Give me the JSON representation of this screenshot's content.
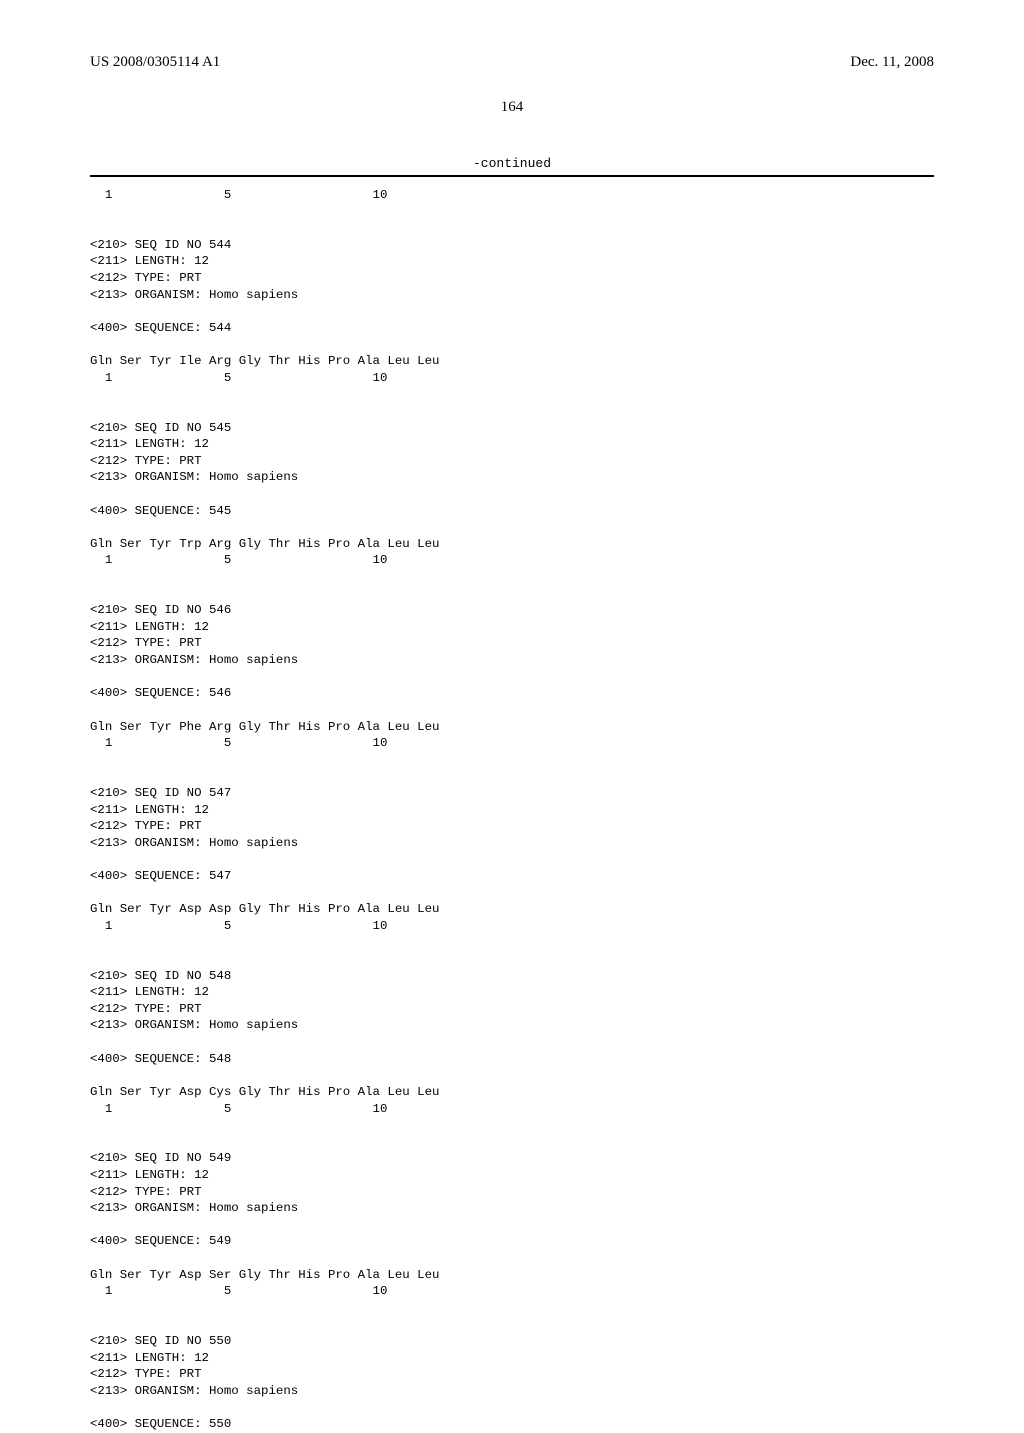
{
  "header": {
    "left": "US 2008/0305114 A1",
    "right": "Dec. 11, 2008"
  },
  "pageNumber": "164",
  "continuedLabel": "-continued",
  "lines": [
    "  1               5                   10",
    "",
    "",
    "<210> SEQ ID NO 544",
    "<211> LENGTH: 12",
    "<212> TYPE: PRT",
    "<213> ORGANISM: Homo sapiens",
    "",
    "<400> SEQUENCE: 544",
    "",
    "Gln Ser Tyr Ile Arg Gly Thr His Pro Ala Leu Leu",
    "  1               5                   10",
    "",
    "",
    "<210> SEQ ID NO 545",
    "<211> LENGTH: 12",
    "<212> TYPE: PRT",
    "<213> ORGANISM: Homo sapiens",
    "",
    "<400> SEQUENCE: 545",
    "",
    "Gln Ser Tyr Trp Arg Gly Thr His Pro Ala Leu Leu",
    "  1               5                   10",
    "",
    "",
    "<210> SEQ ID NO 546",
    "<211> LENGTH: 12",
    "<212> TYPE: PRT",
    "<213> ORGANISM: Homo sapiens",
    "",
    "<400> SEQUENCE: 546",
    "",
    "Gln Ser Tyr Phe Arg Gly Thr His Pro Ala Leu Leu",
    "  1               5                   10",
    "",
    "",
    "<210> SEQ ID NO 547",
    "<211> LENGTH: 12",
    "<212> TYPE: PRT",
    "<213> ORGANISM: Homo sapiens",
    "",
    "<400> SEQUENCE: 547",
    "",
    "Gln Ser Tyr Asp Asp Gly Thr His Pro Ala Leu Leu",
    "  1               5                   10",
    "",
    "",
    "<210> SEQ ID NO 548",
    "<211> LENGTH: 12",
    "<212> TYPE: PRT",
    "<213> ORGANISM: Homo sapiens",
    "",
    "<400> SEQUENCE: 548",
    "",
    "Gln Ser Tyr Asp Cys Gly Thr His Pro Ala Leu Leu",
    "  1               5                   10",
    "",
    "",
    "<210> SEQ ID NO 549",
    "<211> LENGTH: 12",
    "<212> TYPE: PRT",
    "<213> ORGANISM: Homo sapiens",
    "",
    "<400> SEQUENCE: 549",
    "",
    "Gln Ser Tyr Asp Ser Gly Thr His Pro Ala Leu Leu",
    "  1               5                   10",
    "",
    "",
    "<210> SEQ ID NO 550",
    "<211> LENGTH: 12",
    "<212> TYPE: PRT",
    "<213> ORGANISM: Homo sapiens",
    "",
    "<400> SEQUENCE: 550"
  ]
}
